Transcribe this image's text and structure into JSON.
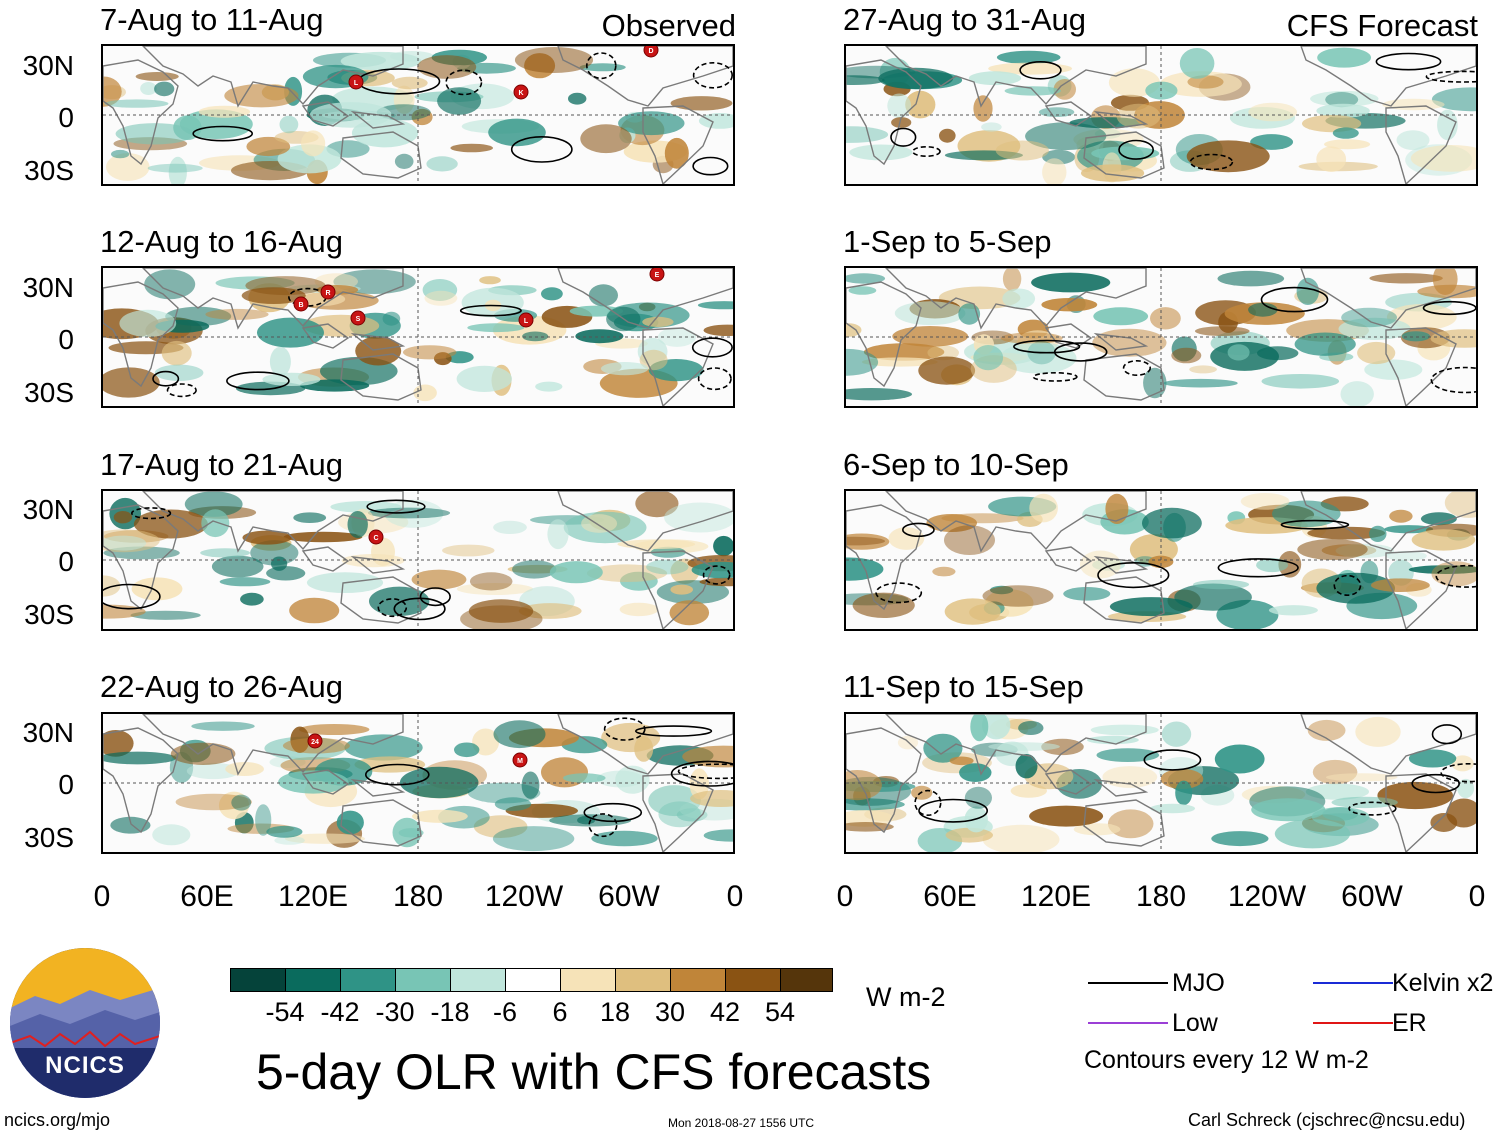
{
  "header": {
    "observed_label": "Observed",
    "forecast_label": "CFS Forecast"
  },
  "panels": {
    "observed": [
      {
        "title": "7-Aug to 11-Aug",
        "storms": [
          "L",
          "K",
          "D"
        ]
      },
      {
        "title": "12-Aug to 16-Aug",
        "storms": [
          "B",
          "R",
          "S",
          "L",
          "E"
        ]
      },
      {
        "title": "17-Aug to 21-Aug",
        "storms": [
          "C"
        ]
      },
      {
        "title": "22-Aug to 26-Aug",
        "storms": [
          "24",
          "M"
        ]
      }
    ],
    "forecast": [
      {
        "title": "27-Aug to 31-Aug"
      },
      {
        "title": "1-Sep to 5-Sep"
      },
      {
        "title": "6-Sep to 10-Sep"
      },
      {
        "title": "11-Sep to 15-Sep"
      }
    ]
  },
  "axes": {
    "lat_labels": [
      "30N",
      "0",
      "30S"
    ],
    "lon_labels": [
      "0",
      "60E",
      "120E",
      "180",
      "120W",
      "60W",
      "0"
    ]
  },
  "colorbar": {
    "colors": [
      "#05433a",
      "#0a6b5d",
      "#2f9386",
      "#78c5b5",
      "#c0e6dc",
      "#ffffff",
      "#f6e3b8",
      "#dfbf7f",
      "#c08539",
      "#8a5313",
      "#55350b"
    ],
    "ticks": [
      "-54",
      "-42",
      "-30",
      "-18",
      "-6",
      "6",
      "18",
      "30",
      "42",
      "54"
    ],
    "units": "W m-2"
  },
  "title": "5-day OLR with CFS forecasts",
  "legend": {
    "mjo": {
      "label": "MJO",
      "color": "#000000"
    },
    "kelvin": {
      "label": "Kelvin x2",
      "color": "#1a2bd6"
    },
    "low": {
      "label": "Low",
      "color": "#9b3fd6"
    },
    "er": {
      "label": "ER",
      "color": "#e01515"
    },
    "contour_note": "Contours every 12 W m-2"
  },
  "logo": {
    "text": "NCICS"
  },
  "footer": {
    "url": "ncics.org/mjo",
    "timestamp": "Mon 2018-08-27 1556 UTC",
    "credit": "Carl Schreck (cjschrec@ncsu.edu)"
  }
}
